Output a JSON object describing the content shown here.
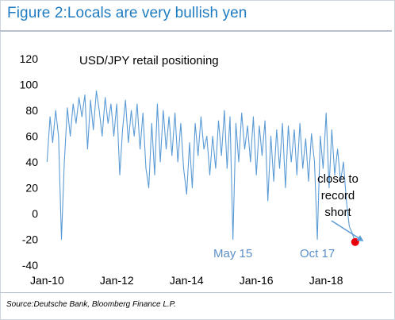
{
  "figure_title": "Figure 2:Locals are very bullish yen",
  "source": "Source:Deutsche Bank, Bloomberg Finance L.P.",
  "colors": {
    "title": "#1f7cc1",
    "series": "#5b9bd5",
    "marker": "#e8000b",
    "annotation": "#5b8fc9"
  },
  "chart_data": {
    "type": "line",
    "title": "USD/JPY retail positioning",
    "xlabel": "",
    "ylabel": "",
    "xlim": [
      "2009-11-01",
      "2018-12-31"
    ],
    "ylim": [
      -40,
      120
    ],
    "y_ticks": [
      120,
      100,
      80,
      60,
      40,
      20,
      0,
      -20,
      -40
    ],
    "x_ticks": [
      "Jan-10",
      "Jan-12",
      "Jan-14",
      "Jan-16",
      "Jan-18"
    ],
    "grid": false,
    "legend": "none",
    "series": [
      {
        "points": [
          [
            "2010-01-01",
            40
          ],
          [
            "2010-02-01",
            75
          ],
          [
            "2010-03-01",
            55
          ],
          [
            "2010-04-01",
            80
          ],
          [
            "2010-05-01",
            60
          ],
          [
            "2010-06-01",
            -20
          ],
          [
            "2010-07-01",
            40
          ],
          [
            "2010-08-01",
            82
          ],
          [
            "2010-09-01",
            60
          ],
          [
            "2010-10-01",
            85
          ],
          [
            "2010-11-01",
            70
          ],
          [
            "2010-12-01",
            90
          ],
          [
            "2011-01-01",
            75
          ],
          [
            "2011-02-01",
            92
          ],
          [
            "2011-03-01",
            50
          ],
          [
            "2011-04-01",
            88
          ],
          [
            "2011-05-01",
            65
          ],
          [
            "2011-06-01",
            95
          ],
          [
            "2011-07-01",
            80
          ],
          [
            "2011-08-01",
            60
          ],
          [
            "2011-09-01",
            90
          ],
          [
            "2011-10-01",
            70
          ],
          [
            "2011-11-01",
            85
          ],
          [
            "2011-12-01",
            60
          ],
          [
            "2012-01-01",
            85
          ],
          [
            "2012-02-01",
            30
          ],
          [
            "2012-03-01",
            65
          ],
          [
            "2012-04-01",
            88
          ],
          [
            "2012-05-01",
            55
          ],
          [
            "2012-06-01",
            80
          ],
          [
            "2012-07-01",
            60
          ],
          [
            "2012-08-01",
            85
          ],
          [
            "2012-09-01",
            50
          ],
          [
            "2012-10-01",
            78
          ],
          [
            "2012-11-01",
            35
          ],
          [
            "2012-12-01",
            20
          ],
          [
            "2013-01-01",
            70
          ],
          [
            "2013-02-01",
            30
          ],
          [
            "2013-03-01",
            85
          ],
          [
            "2013-04-01",
            40
          ],
          [
            "2013-05-01",
            80
          ],
          [
            "2013-06-01",
            50
          ],
          [
            "2013-07-01",
            75
          ],
          [
            "2013-08-01",
            45
          ],
          [
            "2013-09-01",
            78
          ],
          [
            "2013-10-01",
            40
          ],
          [
            "2013-11-01",
            70
          ],
          [
            "2013-12-01",
            35
          ],
          [
            "2014-01-01",
            15
          ],
          [
            "2014-02-01",
            55
          ],
          [
            "2014-03-01",
            20
          ],
          [
            "2014-04-01",
            70
          ],
          [
            "2014-05-01",
            45
          ],
          [
            "2014-06-01",
            75
          ],
          [
            "2014-07-01",
            50
          ],
          [
            "2014-08-01",
            60
          ],
          [
            "2014-09-01",
            30
          ],
          [
            "2014-10-01",
            60
          ],
          [
            "2014-11-01",
            35
          ],
          [
            "2014-12-01",
            72
          ],
          [
            "2015-01-01",
            45
          ],
          [
            "2015-02-01",
            80
          ],
          [
            "2015-03-01",
            35
          ],
          [
            "2015-04-01",
            75
          ],
          [
            "2015-05-01",
            -20
          ],
          [
            "2015-06-01",
            70
          ],
          [
            "2015-07-01",
            40
          ],
          [
            "2015-08-01",
            78
          ],
          [
            "2015-09-01",
            50
          ],
          [
            "2015-10-01",
            68
          ],
          [
            "2015-11-01",
            40
          ],
          [
            "2015-12-01",
            75
          ],
          [
            "2016-01-01",
            30
          ],
          [
            "2016-02-01",
            68
          ],
          [
            "2016-03-01",
            45
          ],
          [
            "2016-04-01",
            72
          ],
          [
            "2016-05-01",
            10
          ],
          [
            "2016-06-01",
            60
          ],
          [
            "2016-07-01",
            25
          ],
          [
            "2016-08-01",
            65
          ],
          [
            "2016-09-01",
            35
          ],
          [
            "2016-10-01",
            70
          ],
          [
            "2016-11-01",
            20
          ],
          [
            "2016-12-01",
            68
          ],
          [
            "2017-01-01",
            40
          ],
          [
            "2017-02-01",
            65
          ],
          [
            "2017-03-01",
            30
          ],
          [
            "2017-04-01",
            70
          ],
          [
            "2017-05-01",
            35
          ],
          [
            "2017-06-01",
            58
          ],
          [
            "2017-07-01",
            25
          ],
          [
            "2017-08-01",
            62
          ],
          [
            "2017-09-01",
            40
          ],
          [
            "2017-10-01",
            -20
          ],
          [
            "2017-11-01",
            60
          ],
          [
            "2017-12-01",
            35
          ],
          [
            "2018-01-01",
            78
          ],
          [
            "2018-02-01",
            20
          ],
          [
            "2018-03-01",
            65
          ],
          [
            "2018-04-01",
            30
          ],
          [
            "2018-05-01",
            50
          ],
          [
            "2018-06-01",
            25
          ],
          [
            "2018-07-01",
            40
          ],
          [
            "2018-08-01",
            10
          ],
          [
            "2018-09-01",
            -10
          ],
          [
            "2018-10-01",
            -15
          ],
          [
            "2018-11-01",
            -22
          ]
        ]
      }
    ],
    "marker": {
      "date": "2018-11-01",
      "value": -22
    },
    "annotations": [
      {
        "text": "May 15",
        "date": "2015-05-01",
        "value": -30
      },
      {
        "text": "Oct 17",
        "date": "2017-10-01",
        "value": -30
      }
    ],
    "callout": {
      "lines": [
        "close to",
        "record",
        "short"
      ]
    }
  }
}
